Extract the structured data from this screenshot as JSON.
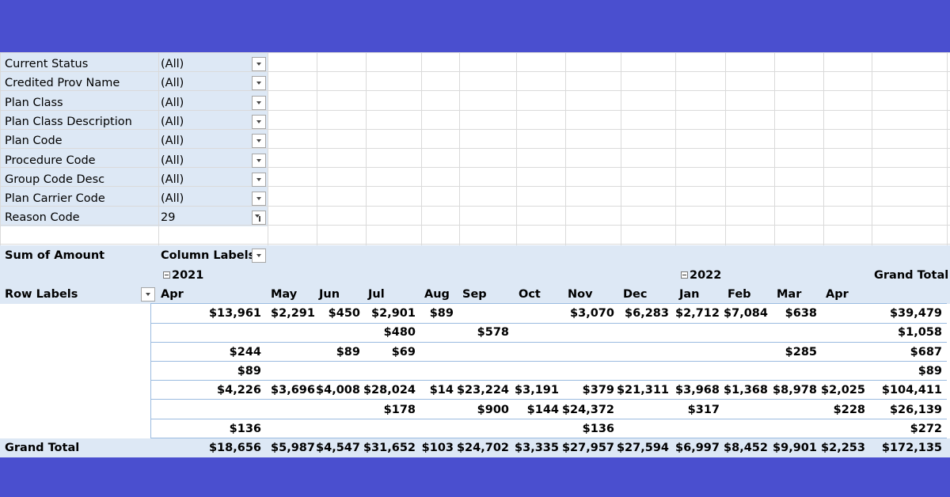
{
  "filters": [
    {
      "label": "Current Status",
      "value": "(All)"
    },
    {
      "label": "Credited Prov Name",
      "value": "(All)"
    },
    {
      "label": "Plan Class",
      "value": "(All)"
    },
    {
      "label": "Plan Class Description",
      "value": "(All)"
    },
    {
      "label": "Plan Code",
      "value": "(All)"
    },
    {
      "label": "Procedure Code",
      "value": "(All)"
    },
    {
      "label": "Group Code Desc",
      "value": "(All)"
    },
    {
      "label": "Plan Carrier Code",
      "value": "(All)"
    },
    {
      "label": "Reason Code",
      "value": "29"
    }
  ],
  "pivot": {
    "sum_label": "Sum of Amount",
    "column_labels": "Column Labels",
    "row_labels": "Row Labels",
    "grand_total_label": "Grand Total",
    "years": [
      "2021",
      "2022"
    ],
    "months": [
      "Apr",
      "May",
      "Jun",
      "Jul",
      "Aug",
      "Sep",
      "Oct",
      "Nov",
      "Dec",
      "Jan",
      "Feb",
      "Mar",
      "Apr"
    ],
    "rows": [
      [
        "$13,961",
        "$2,291",
        "$450",
        "$2,901",
        "$89",
        "",
        "",
        "$3,070",
        "$6,283",
        "$2,712",
        "$7,084",
        "$638",
        "",
        "$39,479"
      ],
      [
        "",
        "",
        "",
        "$480",
        "",
        "$578",
        "",
        "",
        "",
        "",
        "",
        "",
        "",
        "$1,058"
      ],
      [
        "$244",
        "",
        "$89",
        "$69",
        "",
        "",
        "",
        "",
        "",
        "",
        "",
        "$285",
        "",
        "$687"
      ],
      [
        "$89",
        "",
        "",
        "",
        "",
        "",
        "",
        "",
        "",
        "",
        "",
        "",
        "",
        "$89"
      ],
      [
        "$4,226",
        "$3,696",
        "$4,008",
        "$28,024",
        "$14",
        "$23,224",
        "$3,191",
        "$379",
        "$21,311",
        "$3,968",
        "$1,368",
        "$8,978",
        "$2,025",
        "$104,411"
      ],
      [
        "",
        "",
        "",
        "$178",
        "",
        "$900",
        "$144",
        "$24,372",
        "",
        "$317",
        "",
        "",
        "$228",
        "$26,139"
      ],
      [
        "$136",
        "",
        "",
        "",
        "",
        "",
        "",
        "$136",
        "",
        "",
        "",
        "",
        "",
        "$272"
      ]
    ],
    "grand_total_row": [
      "$18,656",
      "$5,987",
      "$4,547",
      "$31,652",
      "$103",
      "$24,702",
      "$3,335",
      "$27,957",
      "$27,594",
      "$6,997",
      "$8,452",
      "$9,901",
      "$2,253",
      "$172,135"
    ]
  },
  "colors": {
    "frame": "#4a4fcf",
    "pivot_band": "#dde8f5",
    "grid": "#dadada"
  }
}
